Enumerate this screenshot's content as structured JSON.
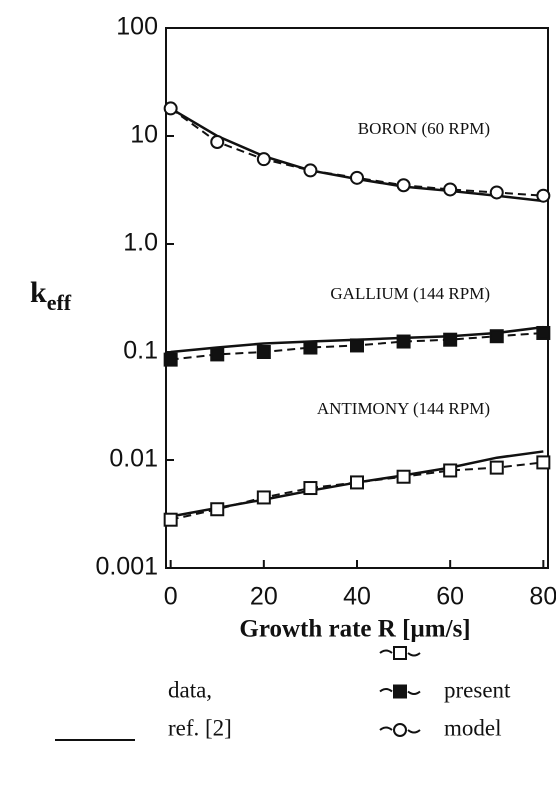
{
  "chart_data": {
    "type": "line",
    "log_y": true,
    "xlim": [
      -1,
      81
    ],
    "ylim": [
      0.001,
      100
    ],
    "xticks": [
      0,
      20,
      40,
      60,
      80
    ],
    "yticks": [
      0.001,
      0.01,
      0.1,
      {
        "value": 1,
        "label": "1.0"
      },
      10,
      100
    ],
    "xlabel": "Growth rate R [µm/s]",
    "ylabel": "k",
    "ylabel_sub": "eff",
    "x": [
      0,
      10,
      20,
      30,
      40,
      50,
      60,
      70,
      80
    ],
    "series": [
      {
        "name": "BORON (60 RPM)",
        "marker": "circle",
        "color": "#111",
        "values": [
          18,
          8.8,
          6.1,
          4.8,
          4.1,
          3.5,
          3.2,
          3.0,
          2.8
        ],
        "ref_values": [
          18,
          10,
          6.5,
          4.8,
          4.0,
          3.4,
          3.1,
          2.8,
          2.5
        ]
      },
      {
        "name": "GALLIUM (144 RPM)",
        "marker": "filled-square",
        "color": "#111",
        "values": [
          0.085,
          0.095,
          0.1,
          0.11,
          0.115,
          0.125,
          0.13,
          0.14,
          0.15
        ],
        "ref_values": [
          0.1,
          0.11,
          0.12,
          0.125,
          0.13,
          0.135,
          0.14,
          0.15,
          0.17
        ]
      },
      {
        "name": "ANTIMONY (144 RPM)",
        "marker": "square",
        "color": "#111",
        "values": [
          0.0028,
          0.0035,
          0.0045,
          0.0055,
          0.0062,
          0.007,
          0.008,
          0.0085,
          0.0095
        ],
        "ref_values": [
          0.003,
          0.0036,
          0.0043,
          0.0052,
          0.0062,
          0.0072,
          0.0085,
          0.0105,
          0.012
        ]
      }
    ],
    "legend": {
      "ref": [
        "data,",
        "ref. [2]"
      ],
      "model": [
        "present",
        "model"
      ]
    }
  }
}
